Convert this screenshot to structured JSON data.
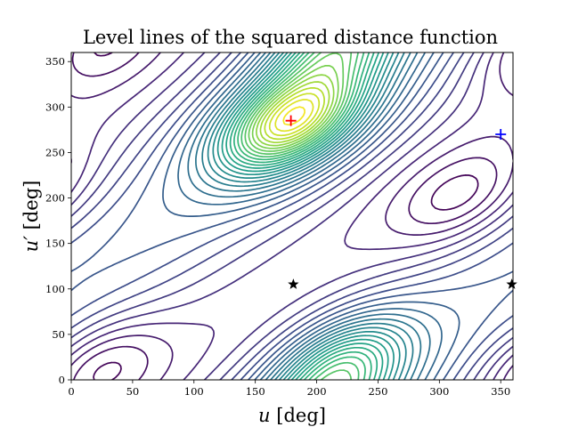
{
  "chart_data": {
    "type": "contour",
    "title": "Level lines of the squared distance function",
    "xlabel": {
      "symbol": "u",
      "unit": " [deg]"
    },
    "ylabel": {
      "symbol": "u′",
      "unit": " [deg]"
    },
    "xlim": [
      0,
      360
    ],
    "ylim": [
      0,
      360
    ],
    "xticks": [
      "0",
      "50",
      "100",
      "150",
      "200",
      "250",
      "300",
      "350"
    ],
    "yticks": [
      "0",
      "50",
      "100",
      "150",
      "200",
      "250",
      "300",
      "350"
    ],
    "grid": false,
    "colormap": "viridis",
    "maximum": {
      "u": 179,
      "u_prime": 285,
      "color": "#ff0000",
      "marker": "plus"
    },
    "minima": [
      {
        "u": 22,
        "u_prime": 15
      },
      {
        "u": 318,
        "u_prime": 200
      }
    ],
    "secondary_maximum": {
      "u": 220,
      "u_prime": 15
    },
    "markers": [
      {
        "u": 179,
        "u_prime": 285,
        "symbol": "plus",
        "color": "#ff0000"
      },
      {
        "u": 350,
        "u_prime": 270,
        "symbol": "plus",
        "color": "#0000ff"
      },
      {
        "u": 181,
        "u_prime": 105,
        "symbol": "star",
        "color": "#000000"
      },
      {
        "u": 359,
        "u_prime": 105,
        "symbol": "star",
        "color": "#000000"
      }
    ]
  }
}
